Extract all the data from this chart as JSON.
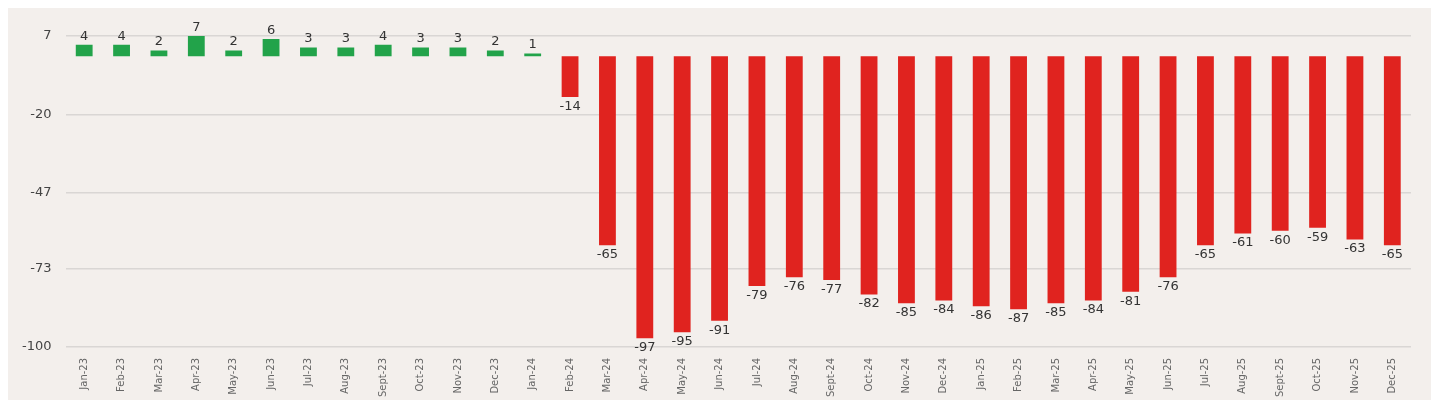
{
  "chart_data": {
    "type": "bar",
    "categories": [
      "Jan-23",
      "Feb-23",
      "Mar-23",
      "Apr-23",
      "May-23",
      "Jun-23",
      "Jul-23",
      "Aug-23",
      "Sept-23",
      "Oct-23",
      "Nov-23",
      "Dec-23",
      "Jan-24",
      "Feb-24",
      "Mar-24",
      "Apr-24",
      "May-24",
      "Jun-24",
      "Jul-24",
      "Aug-24",
      "Sept-24",
      "Oct-24",
      "Nov-24",
      "Dec-24",
      "Jan-25",
      "Feb-25",
      "Mar-25",
      "Apr-25",
      "May-25",
      "Jun-25",
      "Jul-25",
      "Aug-25",
      "Sept-25",
      "Oct-25",
      "Nov-25",
      "Dec-25"
    ],
    "values": [
      4,
      4,
      2,
      7,
      2,
      6,
      3,
      3,
      4,
      3,
      3,
      2,
      1,
      -14,
      -65,
      -97,
      -95,
      -91,
      -79,
      -76,
      -77,
      -82,
      -85,
      -84,
      -86,
      -87,
      -85,
      -84,
      -81,
      -76,
      -65,
      -61,
      -60,
      -59,
      -63,
      -65
    ],
    "colors": [
      "#22a34a",
      "#22a34a",
      "#22a34a",
      "#22a34a",
      "#22a34a",
      "#22a34a",
      "#22a34a",
      "#22a34a",
      "#22a34a",
      "#22a34a",
      "#22a34a",
      "#22a34a",
      "#22a34a",
      "#e0231f",
      "#e0231f",
      "#e0231f",
      "#e0231f",
      "#e0231f",
      "#e0231f",
      "#e0231f",
      "#e0231f",
      "#e0231f",
      "#e0231f",
      "#e0231f",
      "#e0231f",
      "#e0231f",
      "#e0231f",
      "#e0231f",
      "#e0231f",
      "#e0231f",
      "#e0231f",
      "#e0231f",
      "#e0231f",
      "#e0231f",
      "#e0231f",
      "#e0231f"
    ],
    "ylim": [
      -100,
      7
    ],
    "yticks": [
      7,
      -20,
      -47,
      -73,
      -100
    ],
    "grid": "y",
    "data_labels": true,
    "legend": false
  }
}
